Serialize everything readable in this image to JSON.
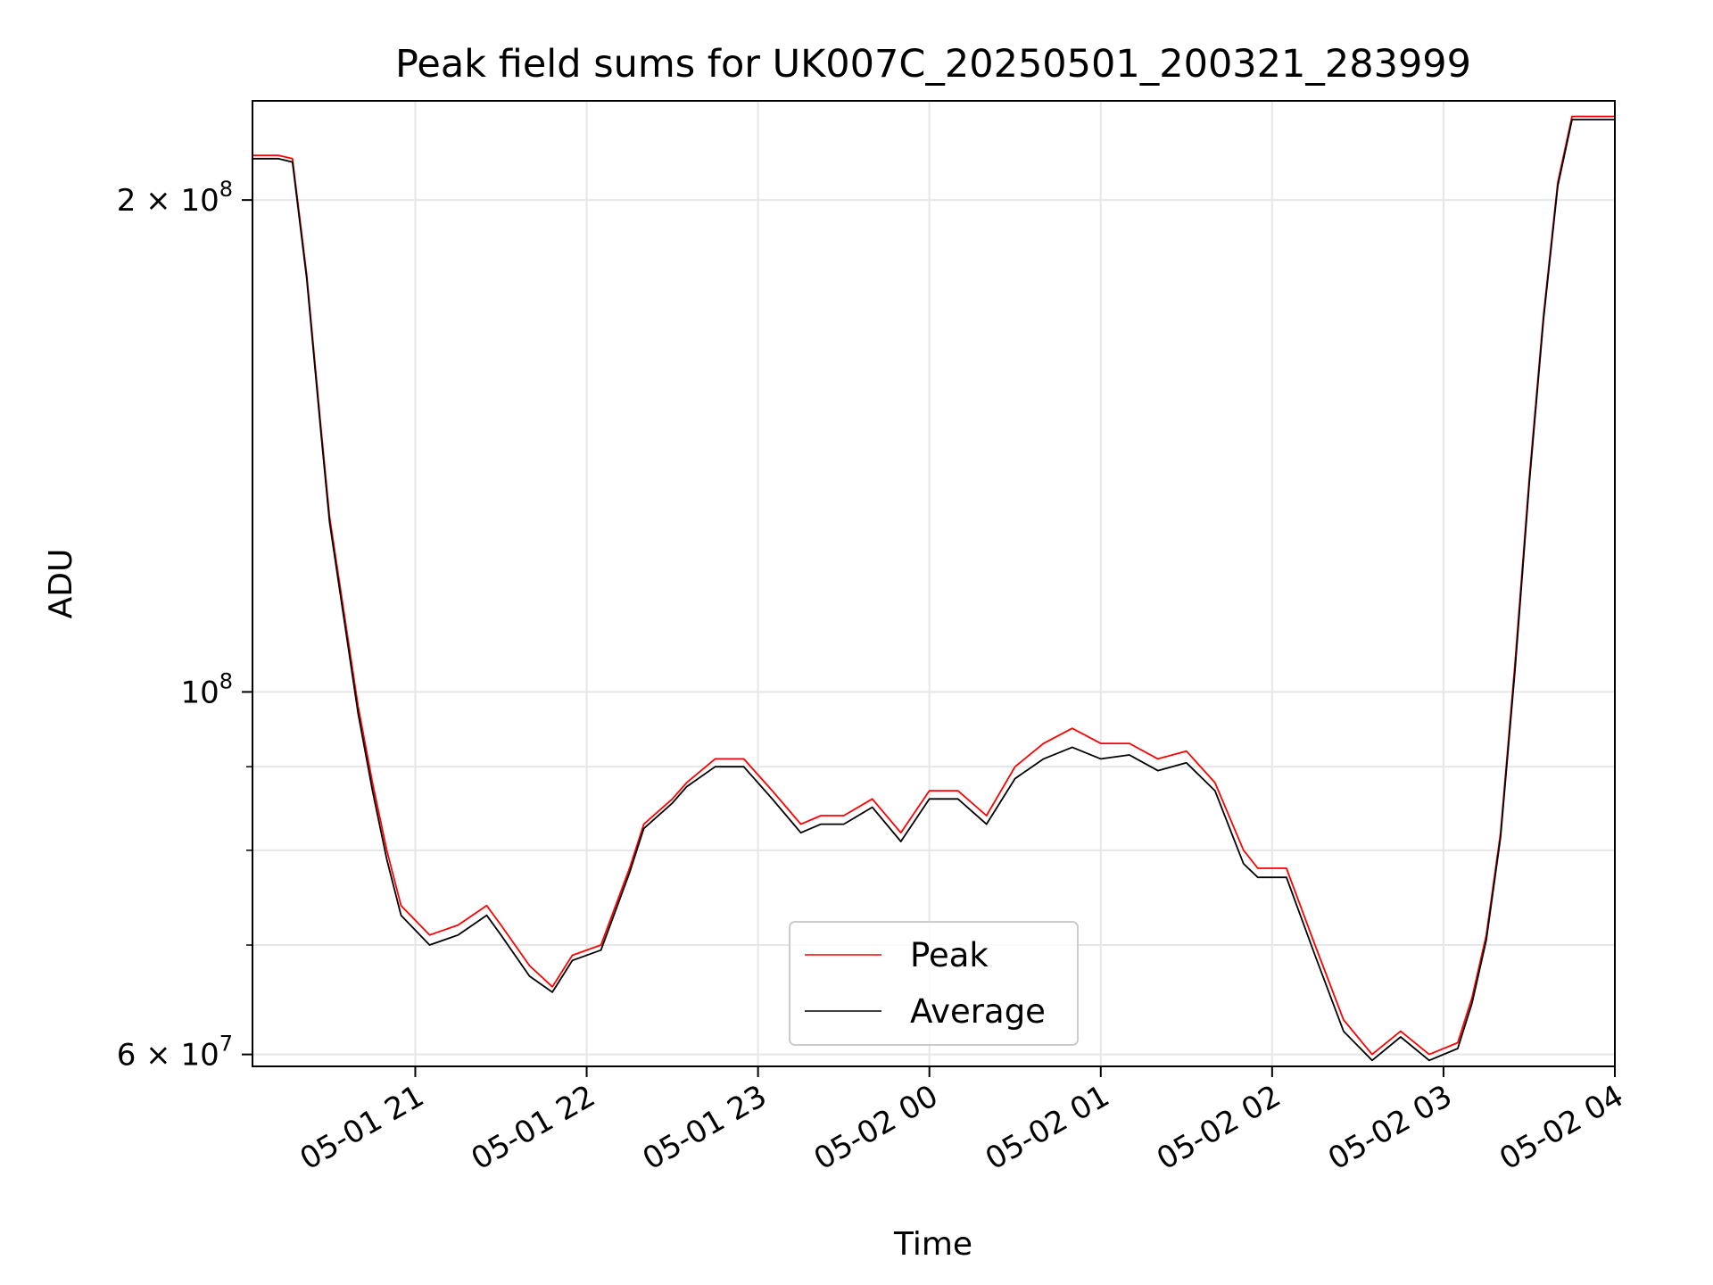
{
  "chart_data": {
    "type": "line",
    "title": "Peak field sums for UK007C_20250501_200321_283999",
    "xlabel": "Time",
    "ylabel": "ADU",
    "y_scale": "log",
    "x_range": [
      "2025-05-01 20:03",
      "2025-05-02 04:00"
    ],
    "ylim": [
      59000000,
      230000000
    ],
    "grid": true,
    "legend_position": "lower-center",
    "x_ticks": [
      {
        "t": "2025-05-01 21:00",
        "label": "05-01 21"
      },
      {
        "t": "2025-05-01 22:00",
        "label": "05-01 22"
      },
      {
        "t": "2025-05-01 23:00",
        "label": "05-01 23"
      },
      {
        "t": "2025-05-02 00:00",
        "label": "05-02 00"
      },
      {
        "t": "2025-05-02 01:00",
        "label": "05-02 01"
      },
      {
        "t": "2025-05-02 02:00",
        "label": "05-02 02"
      },
      {
        "t": "2025-05-02 03:00",
        "label": "05-02 03"
      },
      {
        "t": "2025-05-02 04:00",
        "label": "05-02 04"
      }
    ],
    "y_major_ticks": [
      {
        "value": 60000000,
        "base": "6 × 10",
        "exp": "7"
      },
      {
        "value": 100000000,
        "base": "10",
        "exp": "8"
      },
      {
        "value": 200000000,
        "base": "2 × 10",
        "exp": "8"
      }
    ],
    "y_minor_ticks": [
      70000000,
      80000000,
      90000000
    ],
    "series": [
      {
        "name": "Peak",
        "color": "#ff0000",
        "x": [
          "2025-05-01 20:03",
          "2025-05-01 20:12",
          "2025-05-01 20:17",
          "2025-05-01 20:22",
          "2025-05-01 20:27",
          "2025-05-01 20:30",
          "2025-05-01 20:35",
          "2025-05-01 20:40",
          "2025-05-01 20:45",
          "2025-05-01 20:50",
          "2025-05-01 20:55",
          "2025-05-01 21:05",
          "2025-05-01 21:15",
          "2025-05-01 21:25",
          "2025-05-01 21:30",
          "2025-05-01 21:40",
          "2025-05-01 21:48",
          "2025-05-01 21:55",
          "2025-05-01 22:05",
          "2025-05-01 22:15",
          "2025-05-01 22:20",
          "2025-05-01 22:30",
          "2025-05-01 22:35",
          "2025-05-01 22:45",
          "2025-05-01 22:55",
          "2025-05-01 23:05",
          "2025-05-01 23:15",
          "2025-05-01 23:22",
          "2025-05-01 23:30",
          "2025-05-01 23:40",
          "2025-05-01 23:50",
          "2025-05-02 00:00",
          "2025-05-02 00:10",
          "2025-05-02 00:20",
          "2025-05-02 00:30",
          "2025-05-02 00:40",
          "2025-05-02 00:50",
          "2025-05-02 01:00",
          "2025-05-02 01:10",
          "2025-05-02 01:20",
          "2025-05-02 01:30",
          "2025-05-02 01:40",
          "2025-05-02 01:50",
          "2025-05-02 01:55",
          "2025-05-02 02:05",
          "2025-05-02 02:15",
          "2025-05-02 02:25",
          "2025-05-02 02:35",
          "2025-05-02 02:45",
          "2025-05-02 02:55",
          "2025-05-02 03:05",
          "2025-05-02 03:10",
          "2025-05-02 03:15",
          "2025-05-02 03:20",
          "2025-05-02 03:25",
          "2025-05-02 03:30",
          "2025-05-02 03:35",
          "2025-05-02 03:40",
          "2025-05-02 03:45",
          "2025-05-02 04:00"
        ],
        "y": [
          213000000,
          213000000,
          212000000,
          180000000,
          145000000,
          128000000,
          112000000,
          98000000,
          88000000,
          80000000,
          74000000,
          71000000,
          72000000,
          74000000,
          72000000,
          68000000,
          66000000,
          69000000,
          70000000,
          78000000,
          83000000,
          86000000,
          88000000,
          91000000,
          91000000,
          87000000,
          83000000,
          84000000,
          84000000,
          86000000,
          82000000,
          87000000,
          87000000,
          84000000,
          90000000,
          93000000,
          95000000,
          93000000,
          93000000,
          91000000,
          92000000,
          88000000,
          80000000,
          78000000,
          78000000,
          70000000,
          63000000,
          60000000,
          62000000,
          60000000,
          61000000,
          65000000,
          71000000,
          82000000,
          104000000,
          135000000,
          170000000,
          205000000,
          225000000,
          225000000
        ]
      },
      {
        "name": "Average",
        "color": "#000000",
        "x": [
          "2025-05-01 20:03",
          "2025-05-01 20:12",
          "2025-05-01 20:17",
          "2025-05-01 20:22",
          "2025-05-01 20:27",
          "2025-05-01 20:30",
          "2025-05-01 20:35",
          "2025-05-01 20:40",
          "2025-05-01 20:45",
          "2025-05-01 20:50",
          "2025-05-01 20:55",
          "2025-05-01 21:05",
          "2025-05-01 21:15",
          "2025-05-01 21:25",
          "2025-05-01 21:30",
          "2025-05-01 21:40",
          "2025-05-01 21:48",
          "2025-05-01 21:55",
          "2025-05-01 22:05",
          "2025-05-01 22:15",
          "2025-05-01 22:20",
          "2025-05-01 22:30",
          "2025-05-01 22:35",
          "2025-05-01 22:45",
          "2025-05-01 22:55",
          "2025-05-01 23:05",
          "2025-05-01 23:15",
          "2025-05-01 23:22",
          "2025-05-01 23:30",
          "2025-05-01 23:40",
          "2025-05-01 23:50",
          "2025-05-02 00:00",
          "2025-05-02 00:10",
          "2025-05-02 00:20",
          "2025-05-02 00:30",
          "2025-05-02 00:40",
          "2025-05-02 00:50",
          "2025-05-02 01:00",
          "2025-05-02 01:10",
          "2025-05-02 01:20",
          "2025-05-02 01:30",
          "2025-05-02 01:40",
          "2025-05-02 01:50",
          "2025-05-02 01:55",
          "2025-05-02 02:05",
          "2025-05-02 02:15",
          "2025-05-02 02:25",
          "2025-05-02 02:35",
          "2025-05-02 02:45",
          "2025-05-02 02:55",
          "2025-05-02 03:05",
          "2025-05-02 03:10",
          "2025-05-02 03:15",
          "2025-05-02 03:20",
          "2025-05-02 03:25",
          "2025-05-02 03:30",
          "2025-05-02 03:35",
          "2025-05-02 03:40",
          "2025-05-02 03:45",
          "2025-05-02 04:00"
        ],
        "y": [
          212000000,
          212000000,
          211000000,
          179000000,
          144000000,
          127000000,
          111000000,
          97000000,
          87000000,
          79000000,
          73000000,
          70000000,
          71000000,
          73000000,
          71000000,
          67000000,
          65500000,
          68500000,
          69500000,
          77500000,
          82500000,
          85500000,
          87500000,
          90000000,
          90000000,
          86000000,
          82000000,
          83000000,
          83000000,
          85000000,
          81000000,
          86000000,
          86000000,
          83000000,
          88500000,
          91000000,
          92500000,
          91000000,
          91500000,
          89500000,
          90500000,
          87000000,
          78500000,
          77000000,
          77000000,
          69000000,
          62000000,
          59500000,
          61500000,
          59500000,
          60500000,
          64500000,
          70500000,
          81500000,
          103000000,
          134000000,
          169000000,
          204000000,
          224000000,
          224000000
        ]
      }
    ]
  }
}
